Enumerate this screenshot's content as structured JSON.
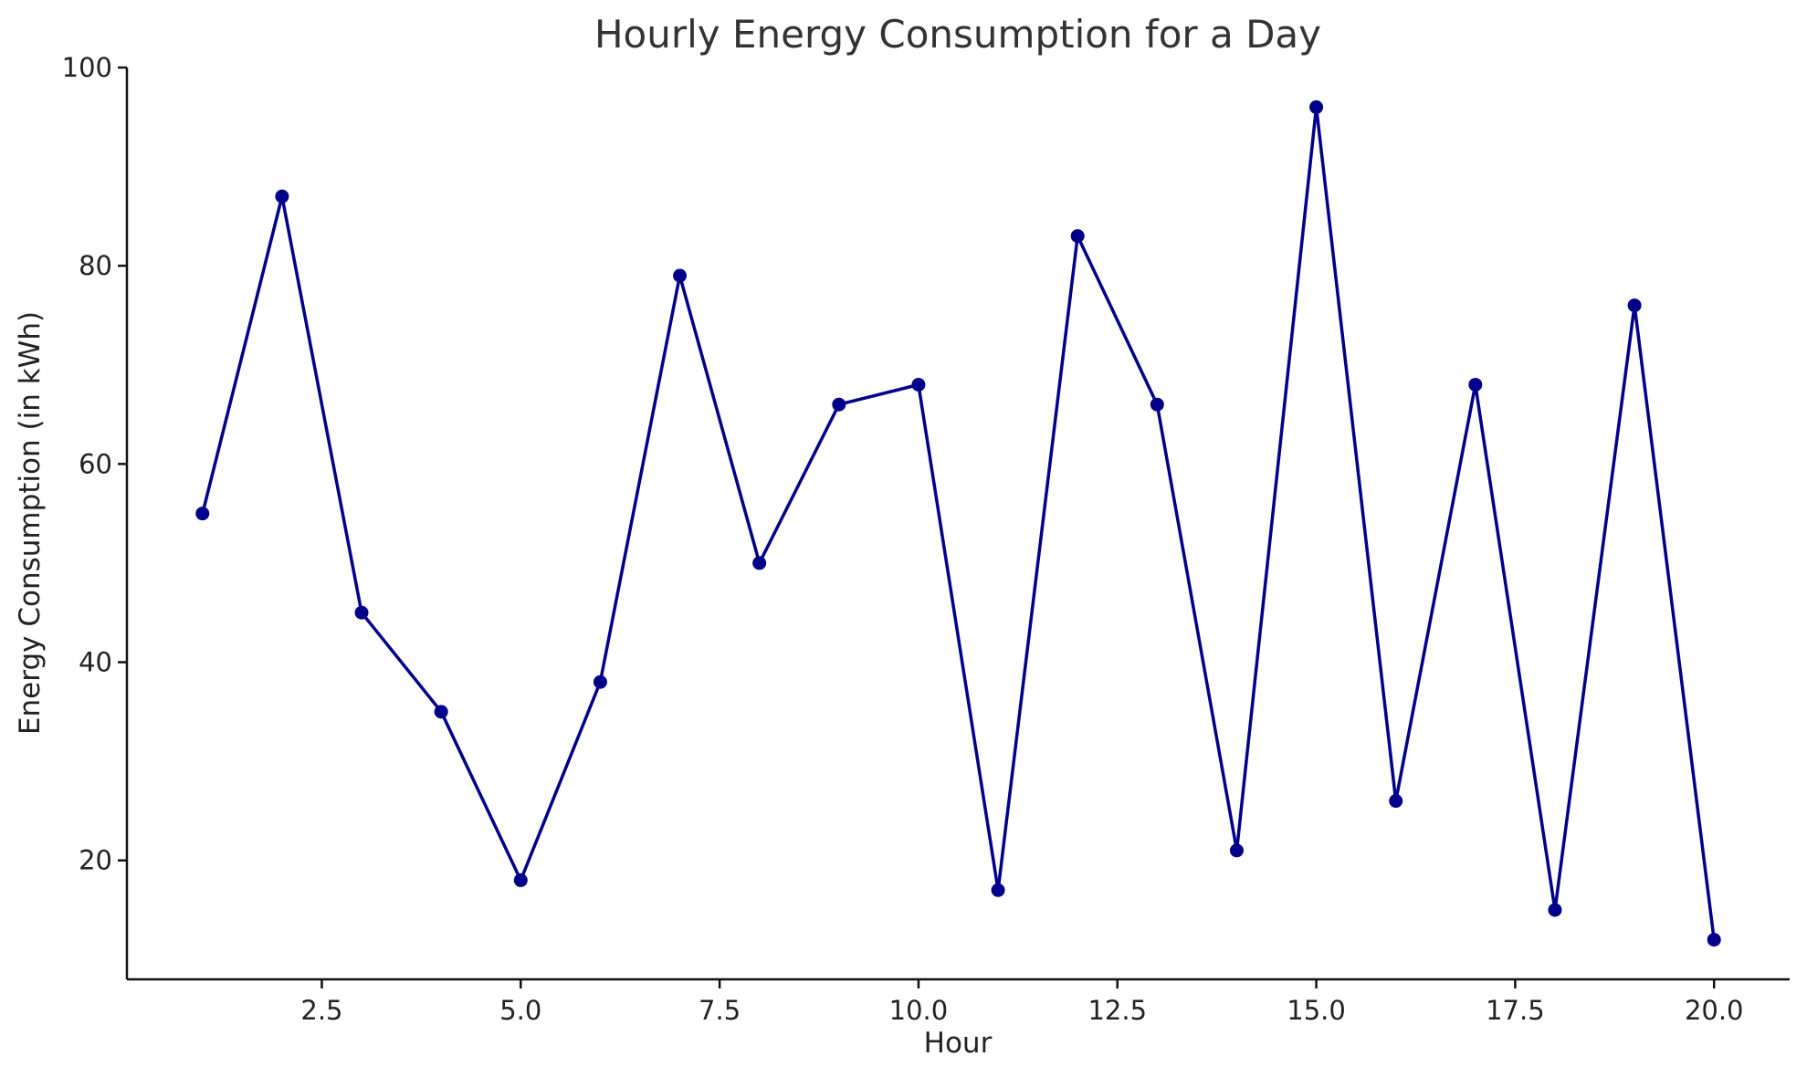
{
  "chart_data": {
    "type": "line",
    "title": "Hourly Energy Consumption for a Day",
    "xlabel": "Hour",
    "ylabel": "Energy Consumption (in kWh)",
    "xlim": [
      0.05,
      20.95
    ],
    "ylim": [
      8,
      100
    ],
    "x_ticks": [
      2.5,
      5.0,
      7.5,
      10.0,
      12.5,
      15.0,
      17.5,
      20.0
    ],
    "x_tick_labels": [
      "2.5",
      "5.0",
      "7.5",
      "10.0",
      "12.5",
      "15.0",
      "17.5",
      "20.0"
    ],
    "y_ticks": [
      20,
      40,
      60,
      80,
      100
    ],
    "y_tick_labels": [
      "20",
      "40",
      "60",
      "80",
      "100"
    ],
    "grid": false,
    "colors": {
      "series": "#00008b",
      "axes": "#111111"
    },
    "series": [
      {
        "x": [
          1,
          2,
          3,
          4,
          5,
          6,
          7,
          8,
          9,
          10,
          11,
          12,
          13,
          14,
          15,
          16,
          17,
          18,
          19,
          20
        ],
        "y": [
          55,
          87,
          45,
          35,
          18,
          38,
          79,
          50,
          66,
          68,
          17,
          83,
          66,
          21,
          96,
          26,
          68,
          15,
          76,
          12
        ]
      }
    ]
  }
}
